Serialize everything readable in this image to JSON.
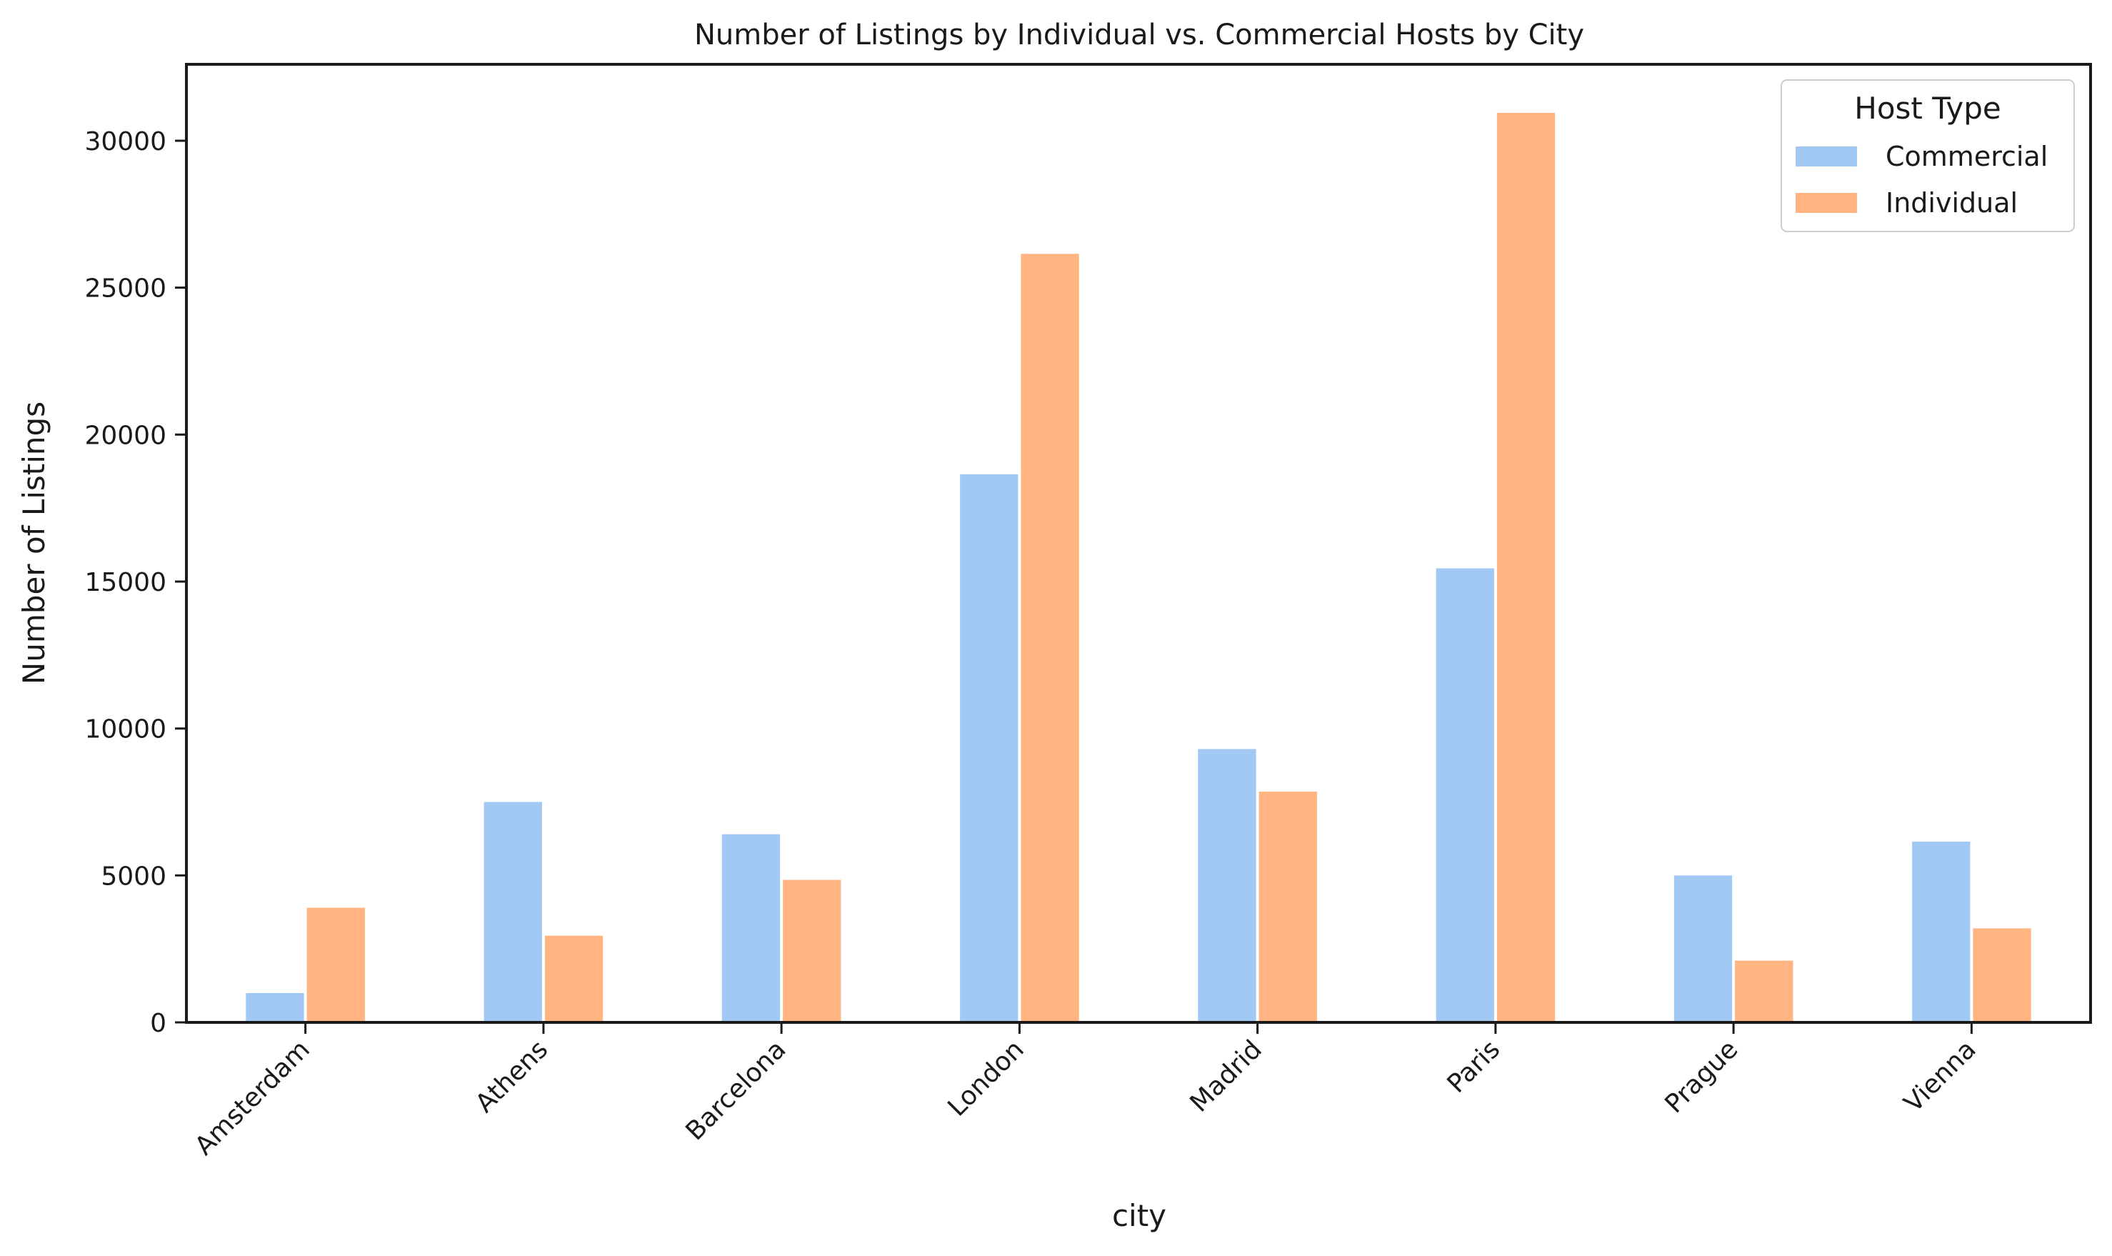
{
  "chart_data": {
    "type": "bar",
    "title": "Number of Listings by Individual vs. Commercial Hosts by City",
    "xlabel": "city",
    "ylabel": "Number of Listings",
    "categories": [
      "Amsterdam",
      "Athens",
      "Barcelona",
      "London",
      "Madrid",
      "Paris",
      "Prague",
      "Vienna"
    ],
    "series": [
      {
        "name": "Commercial",
        "color": "#a1c9f4",
        "values": [
          1000,
          7500,
          6400,
          18650,
          9300,
          15450,
          5000,
          6150
        ]
      },
      {
        "name": "Individual",
        "color": "#ffb482",
        "values": [
          3900,
          2950,
          4850,
          26150,
          7850,
          30950,
          2100,
          3200
        ]
      }
    ],
    "ylim": [
      0,
      32600
    ],
    "yticks": [
      0,
      5000,
      10000,
      15000,
      20000,
      25000,
      30000
    ],
    "grid": false,
    "legend": {
      "title": "Host Type",
      "placement": "top-right"
    },
    "x_tick_rotation_deg": 45
  }
}
